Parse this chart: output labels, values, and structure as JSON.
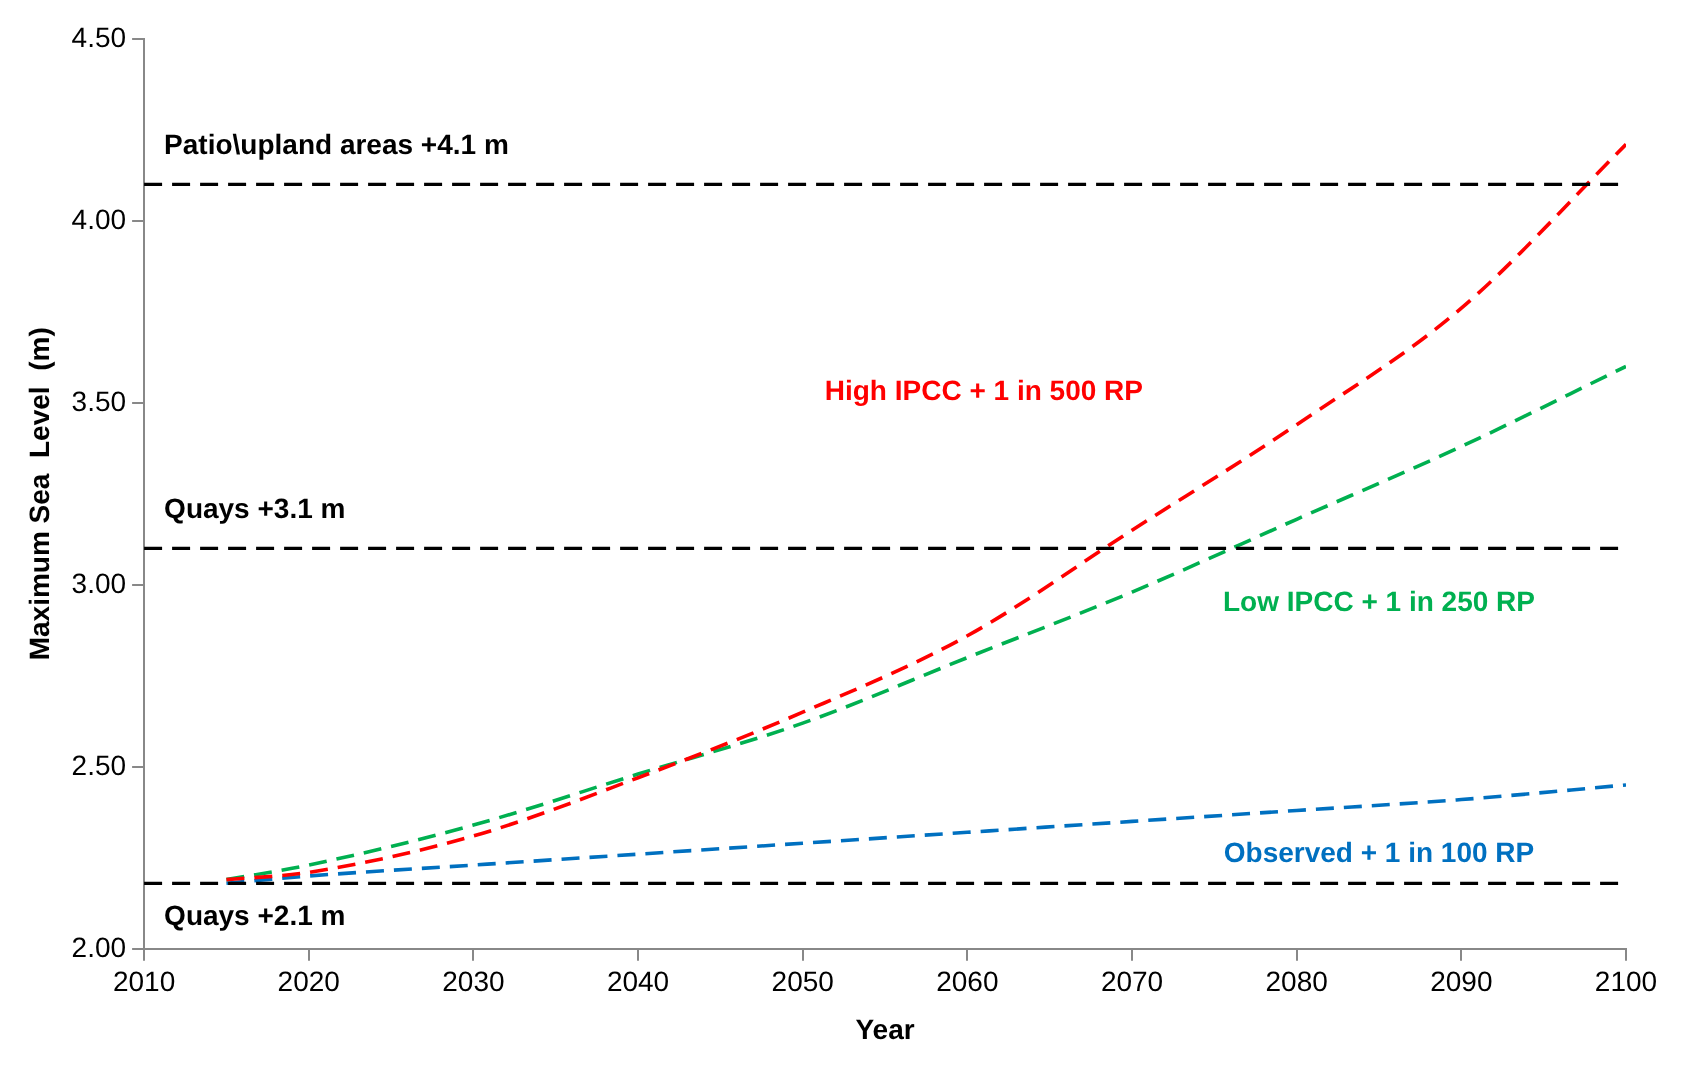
{
  "chart_data": {
    "type": "line",
    "xlabel": "Year",
    "ylabel": "Maximum Sea  Level  (m)",
    "x": [
      2015,
      2020,
      2030,
      2040,
      2050,
      2060,
      2070,
      2080,
      2090,
      2100
    ],
    "series": [
      {
        "name": "High IPCC + 1 in 500 RP",
        "color": "#ff0000",
        "values": [
          2.19,
          2.21,
          2.31,
          2.47,
          2.65,
          2.86,
          3.15,
          3.44,
          3.76,
          4.21
        ]
      },
      {
        "name": "Low IPCC + 1 in 250 RP",
        "color": "#00b050",
        "values": [
          2.19,
          2.23,
          2.34,
          2.48,
          2.62,
          2.8,
          2.98,
          3.18,
          3.38,
          3.6
        ]
      },
      {
        "name": "Observed + 1 in 100 RP",
        "color": "#0070c0",
        "values": [
          2.18,
          2.2,
          2.23,
          2.26,
          2.29,
          2.32,
          2.35,
          2.38,
          2.41,
          2.45
        ]
      }
    ],
    "xlim": [
      2010,
      2100
    ],
    "xticks": [
      2010,
      2020,
      2030,
      2040,
      2050,
      2060,
      2070,
      2080,
      2090,
      2100
    ],
    "ylim": [
      2,
      4.5
    ],
    "yticks": [
      {
        "value": 2,
        "label": "2.00"
      },
      {
        "value": 2.5,
        "label": "2.50"
      },
      {
        "value": 3,
        "label": "3.00"
      },
      {
        "value": 3.5,
        "label": "3.50"
      },
      {
        "value": 4,
        "label": "4.00"
      },
      {
        "value": 4.5,
        "label": "4.50"
      }
    ],
    "ref_lines": [
      {
        "axis": "y",
        "value": 4.1,
        "label": "Patio\\upland areas +4.1 m",
        "color": "#000000",
        "line_style": "dashed"
      },
      {
        "axis": "y",
        "value": 3.1,
        "label": "Quays +3.1 m",
        "color": "#000000",
        "line_style": "dashed"
      },
      {
        "axis": "y",
        "value": 2.18,
        "label": "Quays +2.1 m",
        "color": "#000000",
        "line_style": "dashed"
      }
    ],
    "grid": false,
    "legend": false,
    "marker": "none",
    "line_style": "dashed"
  }
}
